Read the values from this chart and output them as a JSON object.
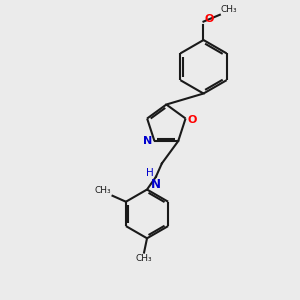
{
  "background_color": "#ebebeb",
  "bond_color": "#1a1a1a",
  "nitrogen_color": "#0000cd",
  "oxygen_color": "#ff0000",
  "line_width": 1.5,
  "fig_width": 3.0,
  "fig_height": 3.0,
  "xlim": [
    0,
    10
  ],
  "ylim": [
    0,
    10
  ]
}
